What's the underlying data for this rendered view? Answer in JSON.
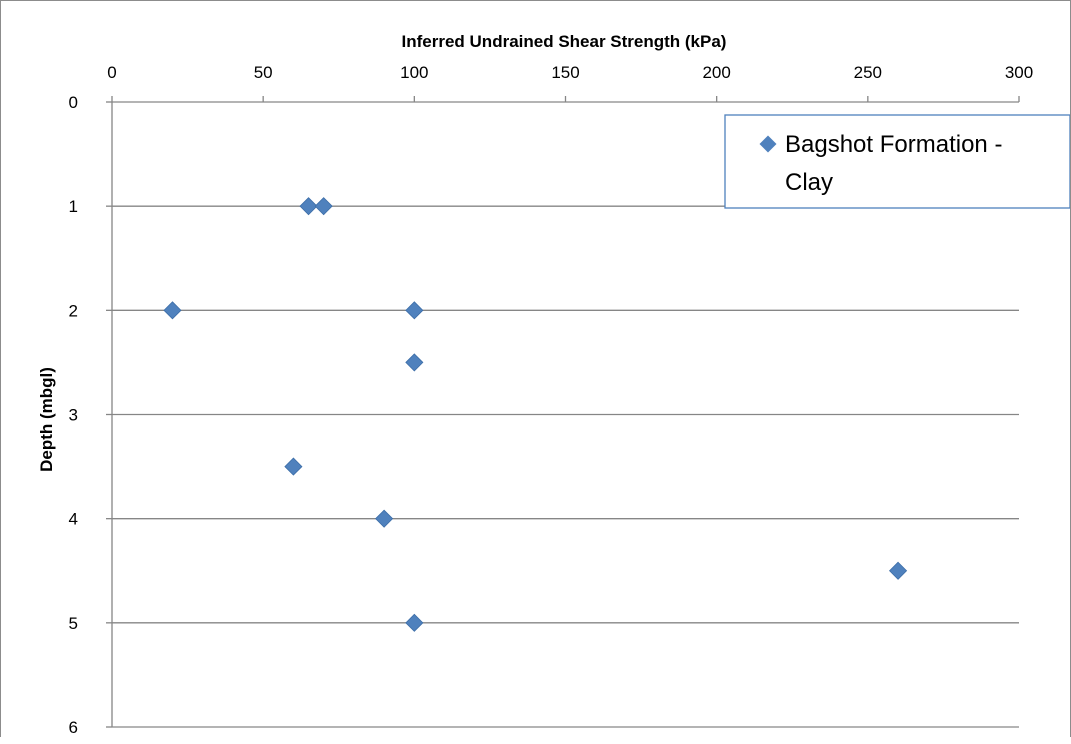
{
  "chart_data": {
    "type": "scatter",
    "title": "",
    "xlabel": "Inferred Undrained Shear Strength (kPa)",
    "ylabel": "Depth (mbgl)",
    "xlim": [
      0,
      300
    ],
    "ylim": [
      0,
      6
    ],
    "x_axis_position": "top",
    "y_axis_reversed": true,
    "x_ticks": [
      0,
      50,
      100,
      150,
      200,
      250,
      300
    ],
    "y_ticks": [
      0,
      1,
      2,
      3,
      4,
      5,
      6
    ],
    "grid": "horizontal",
    "legend_position": "top-right",
    "marker": "diamond",
    "colors": {
      "marker": "#4f81bd",
      "grid": "#868686",
      "legend_border": "#4f81bd"
    },
    "series": [
      {
        "name": "Bagshot Formation - Clay",
        "legend_lines": [
          "Bagshot Formation -",
          "Clay"
        ],
        "points": [
          {
            "x": 65,
            "y": 1.0
          },
          {
            "x": 70,
            "y": 1.0
          },
          {
            "x": 20,
            "y": 2.0
          },
          {
            "x": 100,
            "y": 2.0
          },
          {
            "x": 100,
            "y": 2.5
          },
          {
            "x": 60,
            "y": 3.5
          },
          {
            "x": 90,
            "y": 4.0
          },
          {
            "x": 260,
            "y": 4.5
          },
          {
            "x": 100,
            "y": 5.0
          }
        ]
      }
    ]
  }
}
